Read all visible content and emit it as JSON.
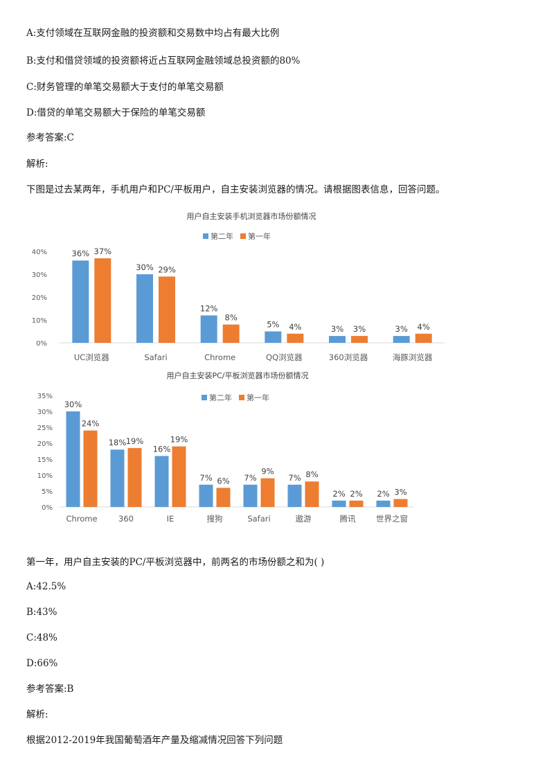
{
  "q1": {
    "options": [
      "A:支付领域在互联网金融的投资额和交易数中均占有最大比例",
      "B:支付和借贷领域的投资额将近占互联网金融领域总投资额的80%",
      "C:财务管理的单笔交易额大于支付的单笔交易额",
      "D:借贷的单笔交易额大于保险的单笔交易额"
    ],
    "answer": "参考答案:C",
    "analysis_label": "解析:"
  },
  "q2": {
    "intro": "下图是过去某两年，手机用户和PC/平板用户，自主安装浏览器的情况。请根据图表信息，回答问题。",
    "question": "第一年，用户自主安装的PC/平板浏览器中，前两名的市场份额之和为( )",
    "options": [
      "A:42.5%",
      "B:43%",
      "C:48%",
      "D:66%"
    ],
    "answer": "参考答案:B",
    "analysis_label": "解析:"
  },
  "q3": {
    "intro": "根据2012-2019年我国葡萄酒年产量及缩减情况回答下列问题"
  },
  "colors": {
    "series_year2": "#5b9bd5",
    "series_year1": "#ed7d31",
    "axis": "#d9d9d9",
    "text": "#595959"
  },
  "chart_data": [
    {
      "type": "bar",
      "title": "用户自主安装手机浏览器市场份额情况",
      "categories": [
        "UC浏览器",
        "Safari",
        "Chrome",
        "QQ浏览器",
        "360浏览器",
        "海豚浏览器"
      ],
      "series": [
        {
          "name": "第二年",
          "values": [
            36,
            30,
            12,
            5,
            3,
            3
          ],
          "labels": [
            "36%",
            "30%",
            "12%",
            "5%",
            "3%",
            "3%"
          ]
        },
        {
          "name": "第一年",
          "values": [
            37,
            29,
            8,
            4,
            3,
            4
          ],
          "labels": [
            "37%",
            "29%",
            "8%",
            "4%",
            "3%",
            "4%"
          ]
        }
      ],
      "yticks": [
        "0%",
        "10%",
        "20%",
        "30%",
        "40%"
      ],
      "ylim": [
        0,
        40
      ],
      "legend": "top-center"
    },
    {
      "type": "bar",
      "title": "用户自主安装PC/平板浏览器市场份额情况",
      "categories": [
        "Chrome",
        "360",
        "IE",
        "搜狗",
        "Safari",
        "遨游",
        "腾讯",
        "世界之窗"
      ],
      "series": [
        {
          "name": "第二年",
          "values": [
            30,
            18,
            16,
            7,
            7,
            7,
            2,
            2
          ],
          "labels": [
            "30%",
            "18%",
            "16%",
            "7%",
            "7%",
            "7%",
            "2%",
            "2%"
          ]
        },
        {
          "name": "第一年",
          "values": [
            24,
            18.5,
            19,
            6,
            9,
            8,
            2,
            2.5
          ],
          "labels": [
            "24%",
            "19%",
            "19%",
            "6%",
            "9%",
            "8%",
            "2%",
            "3%"
          ]
        }
      ],
      "yticks": [
        "0%",
        "5%",
        "10%",
        "15%",
        "20%",
        "25%",
        "30%",
        "35%"
      ],
      "ylim": [
        0,
        35
      ],
      "legend": "top-center"
    }
  ]
}
